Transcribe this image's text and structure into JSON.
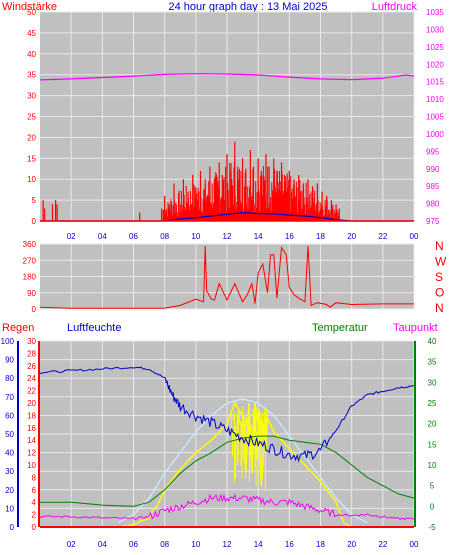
{
  "header": {
    "left_label": "Windstärke",
    "title": "24 hour graph day : 13 Mai 2025",
    "right_label": "Luftdruck"
  },
  "colors": {
    "plot_bg": "#c0c0c0",
    "grid": "#e8e8e8",
    "red": "#ff0000",
    "blue": "#0000cc",
    "magenta": "#ff00ff",
    "green": "#008000",
    "yellow": "#ffff00",
    "lightblue": "#c8e6ff",
    "orange": "#ff8000"
  },
  "time_ticks": [
    "02",
    "04",
    "06",
    "08",
    "10",
    "12",
    "14",
    "16",
    "18",
    "20",
    "22",
    "00"
  ],
  "chart_data": [
    {
      "type": "bar",
      "name": "wind-panel",
      "left_axis": {
        "label": "Windstärke",
        "ticks": [
          "0",
          "5",
          "10",
          "15",
          "20",
          "25",
          "30",
          "35",
          "40",
          "45",
          "50"
        ],
        "range": [
          0,
          50
        ]
      },
      "right_axis": {
        "label": "Luftdruck",
        "ticks": [
          "975",
          "980",
          "985",
          "990",
          "995",
          "1000",
          "1005",
          "1010",
          "1015",
          "1020",
          "1025",
          "1030",
          "1035"
        ],
        "range": [
          975,
          1035
        ]
      },
      "x_range_hours": [
        0,
        24
      ],
      "gust_bars": {
        "color": "#ff0000",
        "points": [
          [
            0.2,
            5
          ],
          [
            0.3,
            3
          ],
          [
            0.8,
            4
          ],
          [
            1.0,
            5
          ],
          [
            1.1,
            4
          ],
          [
            6.4,
            2
          ],
          [
            7.8,
            3
          ],
          [
            8.0,
            6
          ],
          [
            8.3,
            4
          ],
          [
            8.6,
            9
          ],
          [
            8.9,
            5
          ],
          [
            9.2,
            10
          ],
          [
            9.5,
            7
          ],
          [
            9.8,
            11
          ],
          [
            10.0,
            8
          ],
          [
            10.3,
            12
          ],
          [
            10.6,
            9
          ],
          [
            10.9,
            13
          ],
          [
            11.2,
            10
          ],
          [
            11.5,
            14
          ],
          [
            11.7,
            11
          ],
          [
            12.0,
            16
          ],
          [
            12.2,
            12
          ],
          [
            12.5,
            19
          ],
          [
            12.7,
            13
          ],
          [
            13.0,
            15
          ],
          [
            13.2,
            12
          ],
          [
            13.5,
            17
          ],
          [
            13.7,
            13
          ],
          [
            14.0,
            15
          ],
          [
            14.2,
            12
          ],
          [
            14.5,
            16
          ],
          [
            14.7,
            13
          ],
          [
            15.0,
            15
          ],
          [
            15.2,
            12
          ],
          [
            15.5,
            14
          ],
          [
            15.7,
            11
          ],
          [
            16.0,
            12
          ],
          [
            16.3,
            10
          ],
          [
            16.6,
            11
          ],
          [
            16.9,
            9
          ],
          [
            17.2,
            10
          ],
          [
            17.5,
            8
          ],
          [
            17.8,
            9
          ],
          [
            18.1,
            7
          ],
          [
            18.4,
            6
          ],
          [
            18.7,
            5
          ],
          [
            19.0,
            4
          ],
          [
            19.2,
            3
          ]
        ]
      },
      "mean_wind": {
        "color": "#0000cc",
        "points": [
          [
            0,
            0
          ],
          [
            8,
            0
          ],
          [
            9,
            0.5
          ],
          [
            10,
            0.8
          ],
          [
            11,
            1.2
          ],
          [
            12,
            1.6
          ],
          [
            13,
            2.0
          ],
          [
            14,
            1.8
          ],
          [
            15,
            1.7
          ],
          [
            16,
            1.4
          ],
          [
            17,
            1.2
          ],
          [
            18,
            0.8
          ],
          [
            19,
            0.3
          ],
          [
            20,
            0
          ],
          [
            24,
            0
          ]
        ]
      },
      "pressure": {
        "color": "#ff00ff",
        "points": [
          [
            0,
            1015.5
          ],
          [
            2,
            1015.8
          ],
          [
            4,
            1016.2
          ],
          [
            6,
            1016.6
          ],
          [
            8,
            1017.1
          ],
          [
            10,
            1017.3
          ],
          [
            12,
            1017.2
          ],
          [
            14,
            1016.9
          ],
          [
            16,
            1016.3
          ],
          [
            18,
            1015.8
          ],
          [
            20,
            1015.6
          ],
          [
            22,
            1016.0
          ],
          [
            23.5,
            1016.9
          ],
          [
            24,
            1016.6
          ]
        ]
      }
    },
    {
      "type": "line",
      "name": "direction-panel",
      "left_axis": {
        "ticks": [
          "0",
          "90",
          "180",
          "270",
          "360"
        ],
        "range": [
          0,
          360
        ]
      },
      "right_labels": [
        "N",
        "W",
        "S",
        "O",
        "N"
      ],
      "x_range_hours": [
        0,
        24
      ],
      "direction": {
        "color": "#ff0000",
        "points": [
          [
            0,
            10
          ],
          [
            2,
            4
          ],
          [
            5,
            4
          ],
          [
            7.8,
            4
          ],
          [
            8,
            5
          ],
          [
            9,
            20
          ],
          [
            10,
            55
          ],
          [
            10.5,
            40
          ],
          [
            10.6,
            350
          ],
          [
            10.7,
            100
          ],
          [
            11,
            55
          ],
          [
            11.2,
            50
          ],
          [
            11.5,
            140
          ],
          [
            12,
            50
          ],
          [
            12.5,
            140
          ],
          [
            13,
            40
          ],
          [
            13.3,
            80
          ],
          [
            13.6,
            140
          ],
          [
            13.8,
            30
          ],
          [
            14,
            200
          ],
          [
            14.3,
            250
          ],
          [
            14.6,
            90
          ],
          [
            14.8,
            300
          ],
          [
            15,
            300
          ],
          [
            15.2,
            60
          ],
          [
            15.5,
            340
          ],
          [
            15.8,
            300
          ],
          [
            16,
            120
          ],
          [
            16.3,
            80
          ],
          [
            16.6,
            60
          ],
          [
            17,
            40
          ],
          [
            17.2,
            350
          ],
          [
            17.4,
            20
          ],
          [
            17.8,
            35
          ],
          [
            18.4,
            25
          ],
          [
            18.6,
            10
          ],
          [
            19,
            35
          ],
          [
            20,
            25
          ],
          [
            22,
            28
          ],
          [
            24,
            28
          ]
        ]
      }
    },
    {
      "type": "line",
      "name": "climate-panel",
      "header_labels": {
        "rain": "Regen",
        "humidity": "Luftfeuchte",
        "temperature": "Temperatur",
        "dewpoint": "Taupunkt"
      },
      "rain_axis": {
        "ticks": [
          "0",
          "2",
          "4",
          "6",
          "8",
          "10",
          "12",
          "14",
          "16",
          "18",
          "20",
          "22",
          "24",
          "26",
          "28",
          "30"
        ],
        "range": [
          0,
          30
        ]
      },
      "humidity_axis": {
        "ticks": [
          "0",
          "10",
          "20",
          "30",
          "40",
          "50",
          "60",
          "70",
          "80",
          "90",
          "100"
        ],
        "range": [
          0,
          100
        ]
      },
      "temperature_axis": {
        "ticks": [
          "-5",
          "0",
          "5",
          "10",
          "15",
          "20",
          "25",
          "30",
          "35",
          "40"
        ],
        "range": [
          -5,
          40
        ]
      },
      "x_range_hours": [
        0,
        24
      ],
      "humidity": {
        "color": "#0000cc",
        "points": [
          [
            0,
            83
          ],
          [
            2,
            84
          ],
          [
            4,
            85
          ],
          [
            6,
            86
          ],
          [
            7,
            85
          ],
          [
            8,
            80
          ],
          [
            8.5,
            71
          ],
          [
            9,
            65
          ],
          [
            10,
            60
          ],
          [
            11,
            56
          ],
          [
            12,
            52
          ],
          [
            13,
            48
          ],
          [
            14,
            45
          ],
          [
            15,
            42
          ],
          [
            16,
            39
          ],
          [
            17,
            38
          ],
          [
            18,
            41
          ],
          [
            19,
            52
          ],
          [
            20,
            65
          ],
          [
            21,
            71
          ],
          [
            22,
            73
          ],
          [
            23,
            75
          ],
          [
            24,
            76
          ]
        ]
      },
      "temperature": {
        "color": "#008000",
        "points": [
          [
            0,
            1
          ],
          [
            2,
            1
          ],
          [
            4,
            0.3
          ],
          [
            6,
            0
          ],
          [
            7,
            1
          ],
          [
            8,
            4
          ],
          [
            9,
            8
          ],
          [
            10,
            11
          ],
          [
            11,
            13
          ],
          [
            12,
            15.5
          ],
          [
            13,
            16.5
          ],
          [
            14,
            17
          ],
          [
            15,
            17
          ],
          [
            16,
            16
          ],
          [
            17,
            15.5
          ],
          [
            18,
            15
          ],
          [
            19,
            13
          ],
          [
            20,
            10
          ],
          [
            21,
            7
          ],
          [
            22,
            5
          ],
          [
            23,
            3
          ],
          [
            24,
            2
          ]
        ]
      },
      "dewpoint": {
        "color": "#ff00ff",
        "points": [
          [
            0,
            -2.5
          ],
          [
            2,
            -2.5
          ],
          [
            4,
            -2.8
          ],
          [
            6,
            -3
          ],
          [
            7,
            -2.5
          ],
          [
            8,
            -1
          ],
          [
            9,
            0
          ],
          [
            10,
            1
          ],
          [
            11,
            2
          ],
          [
            12,
            2
          ],
          [
            13,
            2
          ],
          [
            14,
            1.5
          ],
          [
            15,
            1
          ],
          [
            16,
            1
          ],
          [
            17,
            0
          ],
          [
            18,
            -1
          ],
          [
            19,
            -2
          ],
          [
            20,
            -2.2
          ],
          [
            21,
            -2
          ],
          [
            22,
            -2.5
          ],
          [
            23,
            -3
          ],
          [
            24,
            -3
          ]
        ]
      },
      "solar_yellow": {
        "color": "#ffff00",
        "points": [
          [
            0,
            -5
          ],
          [
            5,
            -5
          ],
          [
            6,
            -4.5
          ],
          [
            6.5,
            -3.5
          ],
          [
            7,
            -3
          ],
          [
            7.2,
            -1
          ],
          [
            7.5,
            0
          ],
          [
            8,
            4
          ],
          [
            9,
            9
          ],
          [
            10,
            13
          ],
          [
            11,
            16
          ],
          [
            12,
            20
          ],
          [
            12.5,
            25
          ],
          [
            13,
            22
          ],
          [
            13.2,
            8
          ],
          [
            13.4,
            25
          ],
          [
            13.6,
            8
          ],
          [
            13.8,
            25
          ],
          [
            14,
            20
          ],
          [
            14.2,
            5
          ],
          [
            14.5,
            22
          ],
          [
            15,
            18
          ],
          [
            16,
            14
          ],
          [
            17,
            10
          ],
          [
            18,
            6
          ],
          [
            19,
            1
          ],
          [
            19.5,
            -4
          ],
          [
            20,
            -5
          ],
          [
            24,
            -5
          ]
        ]
      },
      "solar_light": {
        "color": "#c8e6ff",
        "points": [
          [
            5,
            -4
          ],
          [
            6,
            -2
          ],
          [
            7,
            2
          ],
          [
            8,
            8
          ],
          [
            9,
            13
          ],
          [
            10,
            18
          ],
          [
            11,
            22
          ],
          [
            12,
            25
          ],
          [
            13,
            26
          ],
          [
            14,
            25
          ],
          [
            15,
            22
          ],
          [
            16,
            17
          ],
          [
            17,
            12
          ],
          [
            18,
            7
          ],
          [
            19,
            2
          ],
          [
            20,
            -2
          ],
          [
            21,
            -4
          ]
        ]
      },
      "rain": {
        "color": "#ff0000",
        "points": [
          [
            0,
            0
          ],
          [
            24,
            0
          ]
        ]
      }
    }
  ]
}
